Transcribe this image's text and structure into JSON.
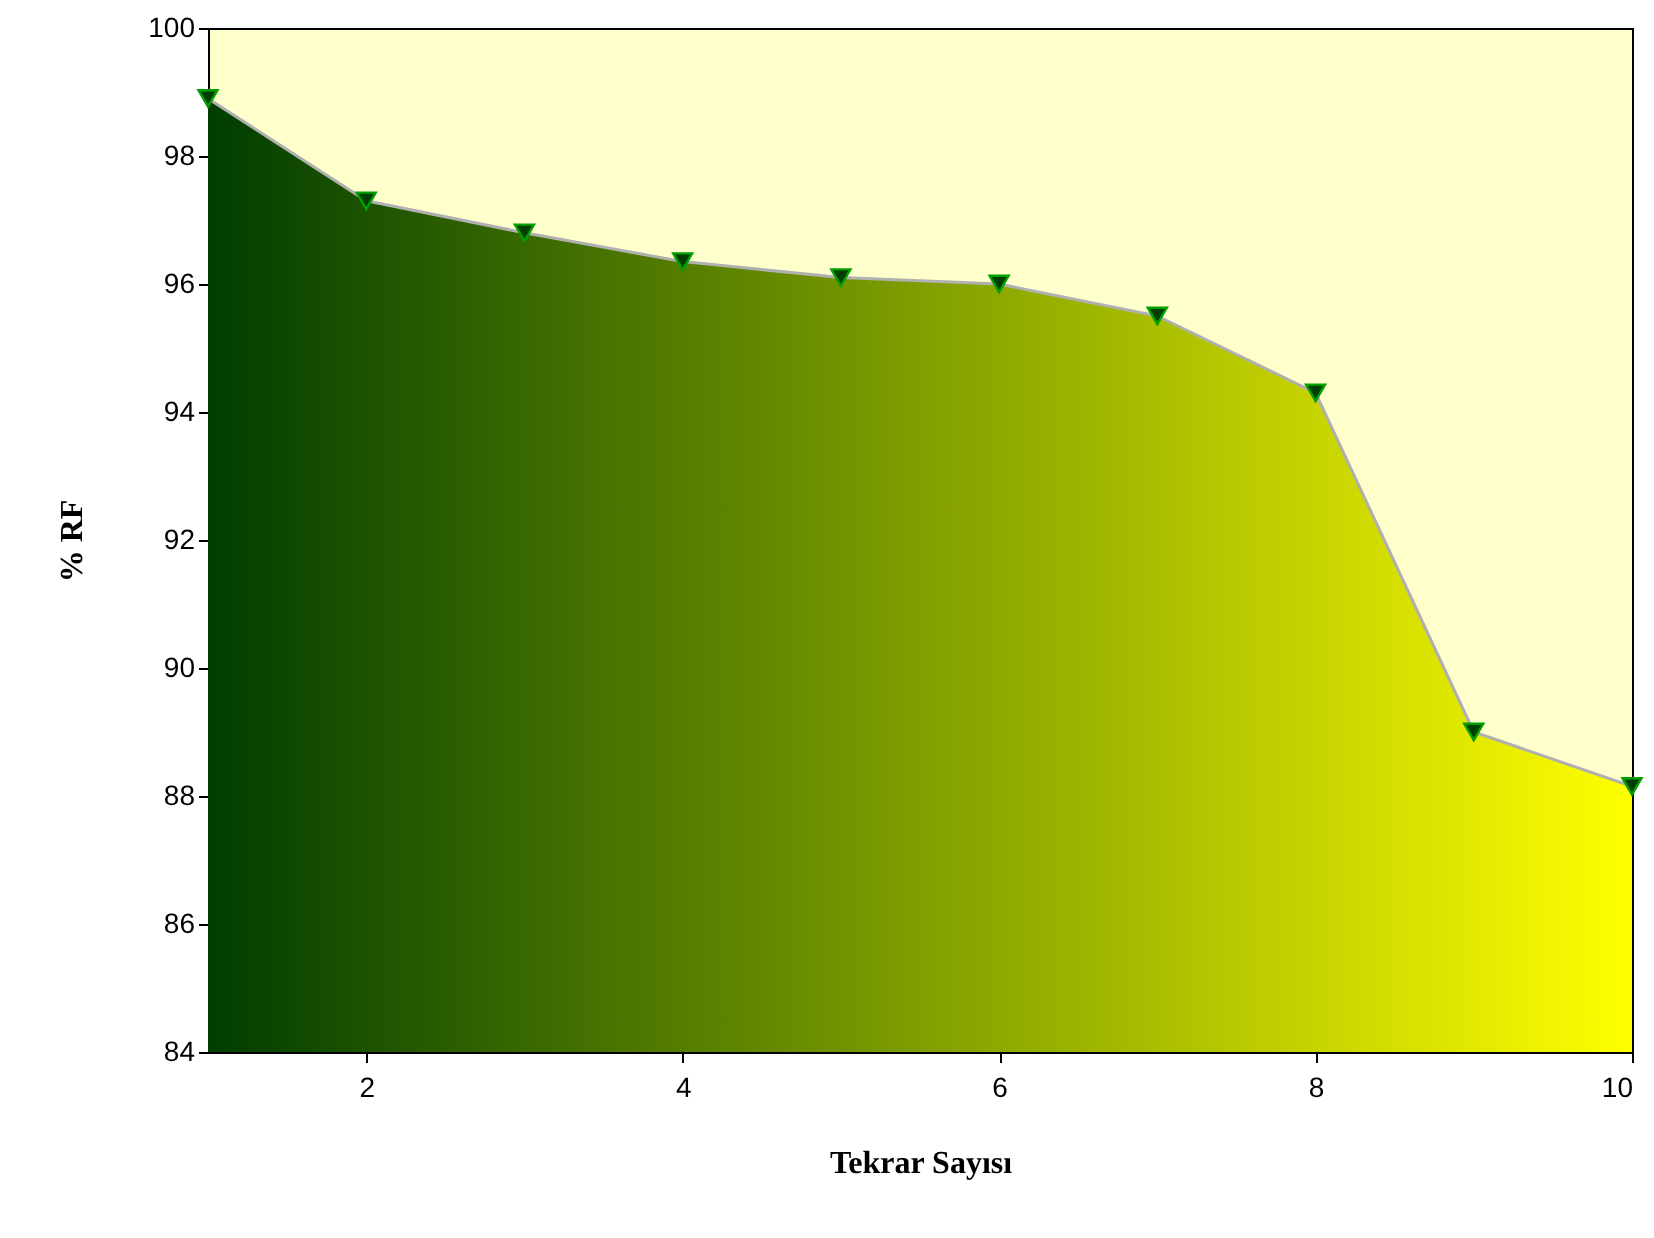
{
  "chart_data": {
    "type": "area",
    "xlabel": "Tekrar Sayısı",
    "ylabel": "% RF",
    "x": [
      1,
      2,
      3,
      4,
      5,
      6,
      7,
      8,
      9,
      10
    ],
    "series": [
      {
        "color": "#003d00",
        "values": [
          98.9,
          97.3,
          96.8,
          96.35,
          96.1,
          96.0,
          95.5,
          94.3,
          89.0,
          88.15
        ]
      }
    ],
    "xlim": [
      1,
      10
    ],
    "xticks": [
      2,
      4,
      6,
      8,
      10
    ],
    "ylim": [
      84,
      100
    ],
    "yticks": [
      84,
      86,
      88,
      90,
      92,
      94,
      96,
      98,
      100
    ],
    "grid": false,
    "marker": "triangle",
    "line_style": "solid"
  }
}
